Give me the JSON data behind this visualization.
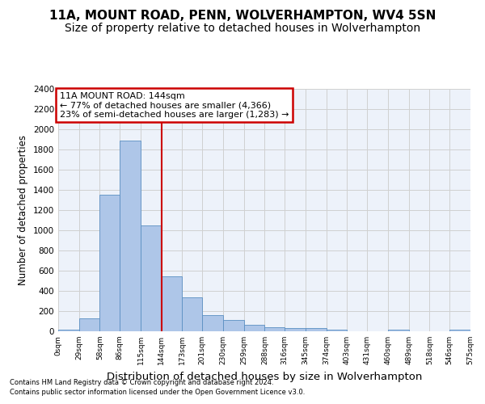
{
  "title1": "11A, MOUNT ROAD, PENN, WOLVERHAMPTON, WV4 5SN",
  "title2": "Size of property relative to detached houses in Wolverhampton",
  "xlabel": "Distribution of detached houses by size in Wolverhampton",
  "ylabel": "Number of detached properties",
  "footer1": "Contains HM Land Registry data © Crown copyright and database right 2024.",
  "footer2": "Contains public sector information licensed under the Open Government Licence v3.0.",
  "annotation_title": "11A MOUNT ROAD: 144sqm",
  "annotation_line1": "← 77% of detached houses are smaller (4,366)",
  "annotation_line2": "23% of semi-detached houses are larger (1,283) →",
  "property_size": 144,
  "bar_values": [
    15,
    125,
    1350,
    1890,
    1045,
    545,
    335,
    160,
    110,
    65,
    40,
    30,
    30,
    20,
    0,
    0,
    20,
    0,
    0,
    20
  ],
  "bin_edges": [
    0,
    29,
    58,
    86,
    115,
    144,
    173,
    201,
    230,
    259,
    288,
    316,
    345,
    374,
    403,
    431,
    460,
    489,
    518,
    546,
    575
  ],
  "bar_color": "#aec6e8",
  "bar_edge_color": "#5a8fc2",
  "vline_color": "#cc0000",
  "vline_x": 144,
  "annotation_box_color": "#cc0000",
  "ylim": [
    0,
    2400
  ],
  "yticks": [
    0,
    200,
    400,
    600,
    800,
    1000,
    1200,
    1400,
    1600,
    1800,
    2000,
    2200,
    2400
  ],
  "grid_color": "#d0d0d0",
  "bg_color": "#edf2fa",
  "title1_fontsize": 11,
  "title2_fontsize": 10,
  "xlabel_fontsize": 9.5,
  "ylabel_fontsize": 8.5,
  "tick_labels": [
    "0sqm",
    "29sqm",
    "58sqm",
    "86sqm",
    "115sqm",
    "144sqm",
    "173sqm",
    "201sqm",
    "230sqm",
    "259sqm",
    "288sqm",
    "316sqm",
    "345sqm",
    "374sqm",
    "403sqm",
    "431sqm",
    "460sqm",
    "489sqm",
    "518sqm",
    "546sqm",
    "575sqm"
  ]
}
